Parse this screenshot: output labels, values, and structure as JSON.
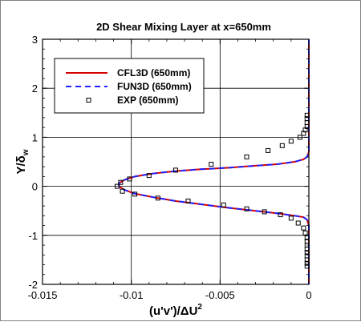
{
  "chart_data": {
    "type": "line",
    "title": "2D Shear Mixing Layer at x=650mm",
    "xlabel": "(u'v')/ΔU²",
    "ylabel": "Y/δw",
    "xlim": [
      -0.015,
      0.0
    ],
    "ylim": [
      -2,
      3
    ],
    "xticks": [
      -0.015,
      -0.01,
      -0.005,
      0
    ],
    "xtick_labels": [
      "-0.015",
      "-0.01",
      "-0.005",
      "0"
    ],
    "yticks": [
      -2,
      -1,
      0,
      1,
      2,
      3
    ],
    "ytick_labels": [
      "-2",
      "-1",
      "0",
      "1",
      "2",
      "3"
    ],
    "grid": true,
    "legend_position": "upper-left",
    "series": [
      {
        "name": "CFL3D (650mm)",
        "color": "#d40000",
        "style": "solid",
        "x": [
          0,
          0,
          0,
          0,
          -0.0001,
          -0.0003,
          -0.0008,
          -0.0018,
          -0.003,
          -0.0045,
          -0.006,
          -0.0075,
          -0.0088,
          -0.0098,
          -0.0104,
          -0.0107,
          -0.0107,
          -0.0104,
          -0.0098,
          -0.0088,
          -0.0075,
          -0.006,
          -0.0045,
          -0.003,
          -0.0018,
          -0.0008,
          -0.0003,
          -0.0001,
          0,
          0,
          0
        ],
        "y": [
          3.0,
          1.5,
          1.0,
          0.7,
          0.6,
          0.55,
          0.5,
          0.45,
          0.42,
          0.38,
          0.35,
          0.31,
          0.26,
          0.2,
          0.13,
          0.06,
          0.0,
          -0.07,
          -0.15,
          -0.22,
          -0.3,
          -0.37,
          -0.44,
          -0.5,
          -0.55,
          -0.6,
          -0.63,
          -0.68,
          -0.8,
          -1.2,
          -2.0
        ]
      },
      {
        "name": "FUN3D (650mm)",
        "color": "#2020ff",
        "style": "dashed",
        "x": [
          0,
          0,
          0,
          0,
          -0.0001,
          -0.0003,
          -0.0008,
          -0.0018,
          -0.003,
          -0.0045,
          -0.006,
          -0.0075,
          -0.0088,
          -0.0098,
          -0.0104,
          -0.0107,
          -0.0107,
          -0.0104,
          -0.0098,
          -0.0088,
          -0.0075,
          -0.006,
          -0.0045,
          -0.003,
          -0.0018,
          -0.0008,
          -0.0003,
          -0.0001,
          0,
          0,
          0
        ],
        "y": [
          3.0,
          1.5,
          1.0,
          0.7,
          0.6,
          0.55,
          0.5,
          0.45,
          0.42,
          0.38,
          0.35,
          0.31,
          0.26,
          0.2,
          0.13,
          0.06,
          0.0,
          -0.07,
          -0.15,
          -0.22,
          -0.3,
          -0.37,
          -0.44,
          -0.5,
          -0.55,
          -0.6,
          -0.63,
          -0.68,
          -0.8,
          -1.2,
          -2.0
        ]
      },
      {
        "name": "EXP (650mm)",
        "color": "#000000",
        "style": "markers",
        "x": [
          -0.0001,
          -0.0001,
          -0.0001,
          -0.0001,
          -0.0002,
          -0.0003,
          -0.0005,
          -0.001,
          -0.0015,
          -0.0023,
          -0.0035,
          -0.0055,
          -0.0075,
          -0.009,
          -0.0101,
          -0.0106,
          -0.0108,
          -0.0105,
          -0.0098,
          -0.0085,
          -0.0068,
          -0.0048,
          -0.0035,
          -0.0025,
          -0.0016,
          -0.001,
          -0.0006,
          -0.0003,
          -0.0002,
          -0.0001,
          -0.0001,
          -0.0001,
          -0.0001,
          -0.0001,
          -0.0001,
          -0.0001,
          -0.0001,
          -0.0001
        ],
        "y": [
          1.45,
          1.38,
          1.3,
          1.22,
          1.15,
          1.08,
          1.0,
          0.92,
          0.83,
          0.73,
          0.6,
          0.45,
          0.33,
          0.22,
          0.15,
          0.08,
          0.0,
          -0.1,
          -0.16,
          -0.24,
          -0.3,
          -0.38,
          -0.46,
          -0.52,
          -0.58,
          -0.65,
          -0.75,
          -0.85,
          -0.95,
          -1.05,
          -1.12,
          -1.2,
          -1.28,
          -1.35,
          -1.42,
          -1.5,
          -1.57,
          -1.63
        ]
      }
    ]
  }
}
